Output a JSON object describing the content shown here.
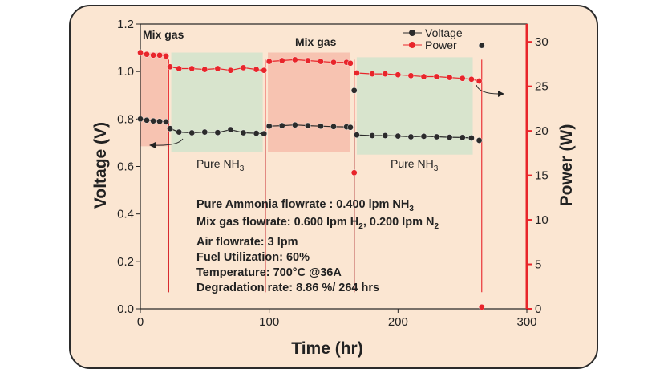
{
  "chart_data": {
    "type": "line",
    "xlabel": "Time (hr)",
    "ylabel_left": "Voltage (V)",
    "ylabel_right": "Power (W)",
    "xlim": [
      0,
      300
    ],
    "ylim_left": [
      0.0,
      1.2
    ],
    "ylim_right": [
      0,
      32
    ],
    "x_ticks": [
      0,
      100,
      200,
      300
    ],
    "y_ticks_left": [
      0.0,
      0.2,
      0.4,
      0.6,
      0.8,
      1.0,
      1.2
    ],
    "y_ticks_right": [
      0,
      5,
      10,
      15,
      20,
      25,
      30
    ],
    "x_tick_labels": [
      "0",
      "100",
      "200",
      "300"
    ],
    "y_tick_labels_left": [
      "0.0",
      "0.2",
      "0.4",
      "0.6",
      "0.8",
      "1.0",
      "1.2"
    ],
    "y_tick_labels_right": [
      "0",
      "5",
      "10",
      "15",
      "20",
      "25",
      "30"
    ],
    "legend_position": "top-right",
    "colors": {
      "voltage": "#2b2b2b",
      "power": "#e8252a",
      "right_axis": "#e8252a",
      "mix_region": "#f5b7a6",
      "pure_region": "#cfe3cc"
    },
    "series": [
      {
        "name": "Voltage",
        "axis": "left",
        "segments": [
          {
            "x": [
              0,
              5,
              10,
              15,
              20
            ],
            "y": [
              0.8,
              0.795,
              0.792,
              0.79,
              0.788
            ]
          },
          {
            "x": [
              23,
              30,
              40,
              50,
              60,
              70,
              80,
              90,
              96
            ],
            "y": [
              0.76,
              0.745,
              0.742,
              0.745,
              0.743,
              0.755,
              0.742,
              0.74,
              0.738
            ]
          },
          {
            "x": [
              100,
              110,
              120,
              130,
              140,
              150,
              160,
              163
            ],
            "y": [
              0.77,
              0.772,
              0.775,
              0.772,
              0.77,
              0.768,
              0.767,
              0.765
            ]
          },
          {
            "x": [
              166
            ],
            "y": [
              0.92
            ]
          },
          {
            "x": [
              168,
              180,
              190,
              200,
              210,
              220,
              230,
              240,
              250,
              257
            ],
            "y": [
              0.733,
              0.73,
              0.73,
              0.728,
              0.725,
              0.727,
              0.725,
              0.723,
              0.722,
              0.72
            ]
          },
          {
            "x": [
              263
            ],
            "y": [
              0.71
            ]
          },
          {
            "x": [
              265
            ],
            "y": [
              1.11
            ]
          }
        ],
        "dips": [
          22,
          97,
          166
        ]
      },
      {
        "name": "Power",
        "axis": "right",
        "segments": [
          {
            "x": [
              0,
              5,
              10,
              15,
              20
            ],
            "y": [
              28.8,
              28.6,
              28.5,
              28.5,
              28.4
            ]
          },
          {
            "x": [
              23,
              30,
              40,
              50,
              60,
              70,
              80,
              90,
              96
            ],
            "y": [
              27.2,
              27.0,
              27.0,
              26.9,
              27.0,
              26.8,
              27.1,
              26.9,
              26.8
            ]
          },
          {
            "x": [
              100,
              110,
              120,
              130,
              140,
              150,
              160,
              163
            ],
            "y": [
              27.8,
              27.9,
              28.0,
              27.9,
              27.8,
              27.7,
              27.7,
              27.6
            ]
          },
          {
            "x": [
              168,
              180,
              190,
              200,
              210,
              220,
              230,
              240,
              250,
              257,
              263
            ],
            "y": [
              26.5,
              26.4,
              26.4,
              26.3,
              26.2,
              26.1,
              26.1,
              26.0,
              25.9,
              25.8,
              25.6
            ]
          },
          {
            "x": [
              166
            ],
            "y": [
              15.3
            ]
          },
          {
            "x": [
              265
            ],
            "y": [
              0.2
            ]
          }
        ],
        "dips": [
          22,
          97,
          166,
          265
        ]
      }
    ],
    "regions": [
      {
        "label": "Mix gas",
        "x_start": 0,
        "x_end": 21,
        "y_start": 0.685,
        "y_end": 1.08,
        "kind": "mix"
      },
      {
        "label": "Pure NH",
        "x_start": 24,
        "x_end": 95,
        "y_start": 0.66,
        "y_end": 1.08,
        "kind": "pure"
      },
      {
        "label": "Mix gas",
        "x_start": 99,
        "x_end": 163,
        "y_start": 0.66,
        "y_end": 1.08,
        "kind": "mix"
      },
      {
        "label": "Pure NH",
        "x_start": 168,
        "x_end": 258,
        "y_start": 0.65,
        "y_end": 1.06,
        "kind": "pure"
      }
    ]
  },
  "annotations": {
    "mix_gas_1": "Mix gas",
    "mix_gas_2": "Mix gas",
    "pure_1_main": "Pure NH",
    "pure_1_sub": "3",
    "pure_2_main": "Pure NH",
    "pure_2_sub": "3"
  },
  "info": {
    "line1_a": "Pure Ammonia flowrate : 0.400 lpm NH",
    "line1_sub": "3",
    "line2_a": "Mix gas flowrate: 0.600 lpm H",
    "line2_sub1": "2",
    "line2_b": ", 0.200 lpm N",
    "line2_sub2": "2",
    "line3": "Air flowrate: 3 lpm",
    "line4": "Fuel Utilization: 60%",
    "line5": "Temperature: 700°C @36A",
    "line6": "Degradation rate: 8.86 %/ 264 hrs"
  },
  "legend": {
    "voltage": "Voltage",
    "power": "Power"
  }
}
